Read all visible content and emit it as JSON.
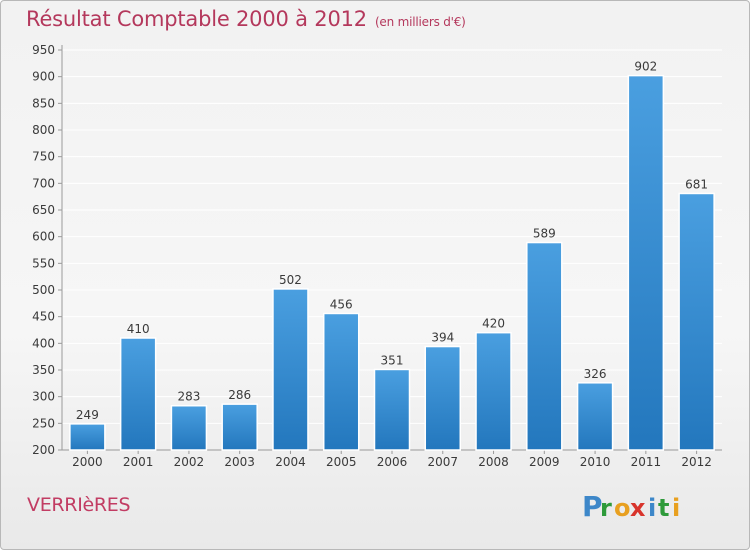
{
  "chart_data": {
    "type": "bar",
    "title": "Résultat Comptable 2000 à 2012",
    "subtitle": "(en milliers d'€)",
    "categories": [
      "2000",
      "2001",
      "2002",
      "2003",
      "2004",
      "2005",
      "2006",
      "2007",
      "2008",
      "2009",
      "2010",
      "2011",
      "2012"
    ],
    "values": [
      249,
      410,
      283,
      286,
      502,
      456,
      351,
      394,
      420,
      589,
      326,
      902,
      681
    ],
    "ylim": [
      200,
      950
    ],
    "yticks": [
      200,
      250,
      300,
      350,
      400,
      450,
      500,
      550,
      600,
      650,
      700,
      750,
      800,
      850,
      900,
      950
    ],
    "xlabel": "",
    "ylabel": "",
    "grid": true,
    "bar_color": "#4a9fe0",
    "bar_color_dark": "#2377bd",
    "label_color": "#3a3a3a",
    "grid_color": "#ffffff"
  },
  "footer": {
    "commune": "VERRIèRES"
  },
  "logo": {
    "letters": [
      "P",
      "r",
      "o",
      "x",
      "i",
      "t",
      "i"
    ],
    "colors": [
      "#3d87c9",
      "#2e9a3a",
      "#e8a020",
      "#d8342c",
      "#3d87c9",
      "#2e9a3a",
      "#e8a020"
    ]
  }
}
